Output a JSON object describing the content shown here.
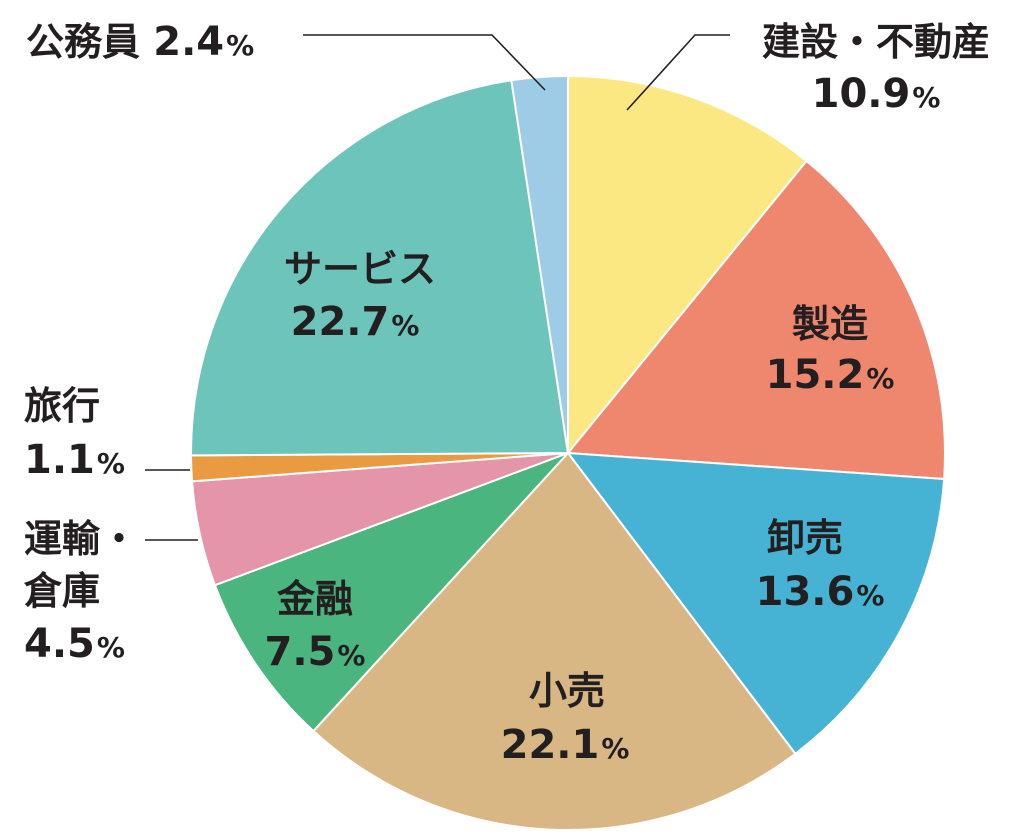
{
  "chart_data": {
    "type": "pie",
    "slices": [
      {
        "label": "建設・不動産",
        "value": 10.9,
        "color": "#FCE883"
      },
      {
        "label": "製造",
        "value": 15.2,
        "color": "#EF876E"
      },
      {
        "label": "卸売",
        "value": 13.6,
        "color": "#46B3D4"
      },
      {
        "label": "小売",
        "value": 22.1,
        "color": "#D8B784"
      },
      {
        "label": "金融",
        "value": 7.5,
        "color": "#4BB580"
      },
      {
        "label": "運輸・倉庫",
        "value": 4.5,
        "color": "#E595A9"
      },
      {
        "label": "旅行",
        "value": 1.1,
        "color": "#EA9A40"
      },
      {
        "label": "サービス",
        "value": 22.7,
        "color": "#6CC4BA"
      },
      {
        "label": "公務員",
        "value": 2.4,
        "color": "#9ECBE5"
      }
    ],
    "value_suffix": "%",
    "legend": "none"
  }
}
